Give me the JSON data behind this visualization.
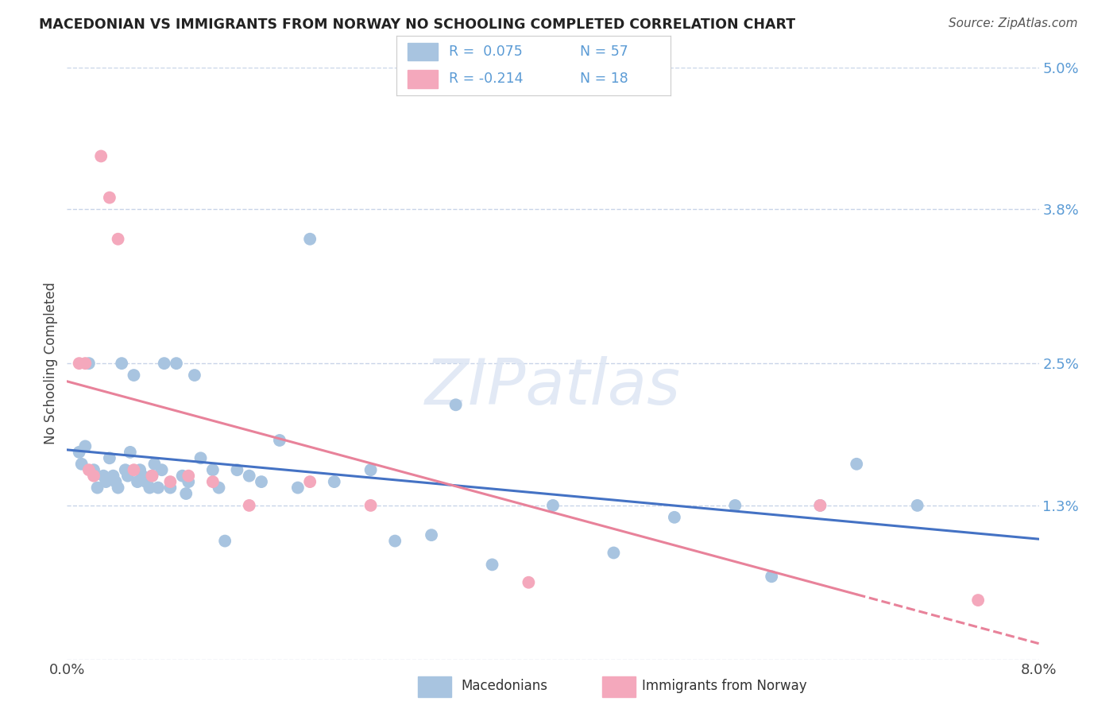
{
  "title": "MACEDONIAN VS IMMIGRANTS FROM NORWAY NO SCHOOLING COMPLETED CORRELATION CHART",
  "source": "Source: ZipAtlas.com",
  "ylabel": "No Schooling Completed",
  "xlim": [
    0.0,
    8.0
  ],
  "ylim": [
    0.0,
    5.0
  ],
  "yticks": [
    0.0,
    1.3,
    2.5,
    3.8,
    5.0
  ],
  "ytick_labels": [
    "",
    "1.3%",
    "2.5%",
    "3.8%",
    "5.0%"
  ],
  "macedonian_color": "#a8c4e0",
  "norway_color": "#f4a8bc",
  "trend_mac_color": "#4472c4",
  "trend_nor_color": "#e8829a",
  "background_color": "#ffffff",
  "grid_color": "#c8d4e8",
  "watermark": "ZIPatlas",
  "macedonian_x": [
    0.1,
    0.12,
    0.15,
    0.18,
    0.22,
    0.25,
    0.3,
    0.32,
    0.35,
    0.38,
    0.4,
    0.42,
    0.45,
    0.48,
    0.5,
    0.52,
    0.55,
    0.58,
    0.6,
    0.62,
    0.65,
    0.68,
    0.7,
    0.72,
    0.75,
    0.78,
    0.8,
    0.85,
    0.9,
    0.95,
    0.98,
    1.0,
    1.05,
    1.1,
    1.2,
    1.25,
    1.3,
    1.4,
    1.5,
    1.6,
    1.75,
    1.9,
    2.0,
    2.2,
    2.5,
    2.7,
    3.0,
    3.2,
    3.5,
    4.0,
    4.5,
    5.0,
    5.5,
    5.8,
    6.2,
    6.5,
    7.0
  ],
  "macedonian_y": [
    1.75,
    1.65,
    1.8,
    2.5,
    1.6,
    1.45,
    1.55,
    1.5,
    1.7,
    1.55,
    1.5,
    1.45,
    2.5,
    1.6,
    1.55,
    1.75,
    2.4,
    1.5,
    1.6,
    1.55,
    1.5,
    1.45,
    1.55,
    1.65,
    1.45,
    1.6,
    2.5,
    1.45,
    2.5,
    1.55,
    1.4,
    1.5,
    2.4,
    1.7,
    1.6,
    1.45,
    1.0,
    1.6,
    1.55,
    1.5,
    1.85,
    1.45,
    3.55,
    1.5,
    1.6,
    1.0,
    1.05,
    2.15,
    0.8,
    1.3,
    0.9,
    1.2,
    1.3,
    0.7,
    1.3,
    1.65,
    1.3
  ],
  "norway_x": [
    0.1,
    0.15,
    0.18,
    0.22,
    0.28,
    0.35,
    0.42,
    0.55,
    0.7,
    0.85,
    1.0,
    1.2,
    1.5,
    2.0,
    2.5,
    3.8,
    6.2,
    7.5
  ],
  "norway_y": [
    2.5,
    2.5,
    1.6,
    1.55,
    4.25,
    3.9,
    3.55,
    1.6,
    1.55,
    1.5,
    1.55,
    1.5,
    1.3,
    1.5,
    1.3,
    0.65,
    1.3,
    0.5
  ],
  "trend_mac_start_x": 0.0,
  "trend_mac_end_x": 8.0,
  "trend_nor_solid_end_x": 6.5,
  "trend_nor_end_x": 8.0
}
